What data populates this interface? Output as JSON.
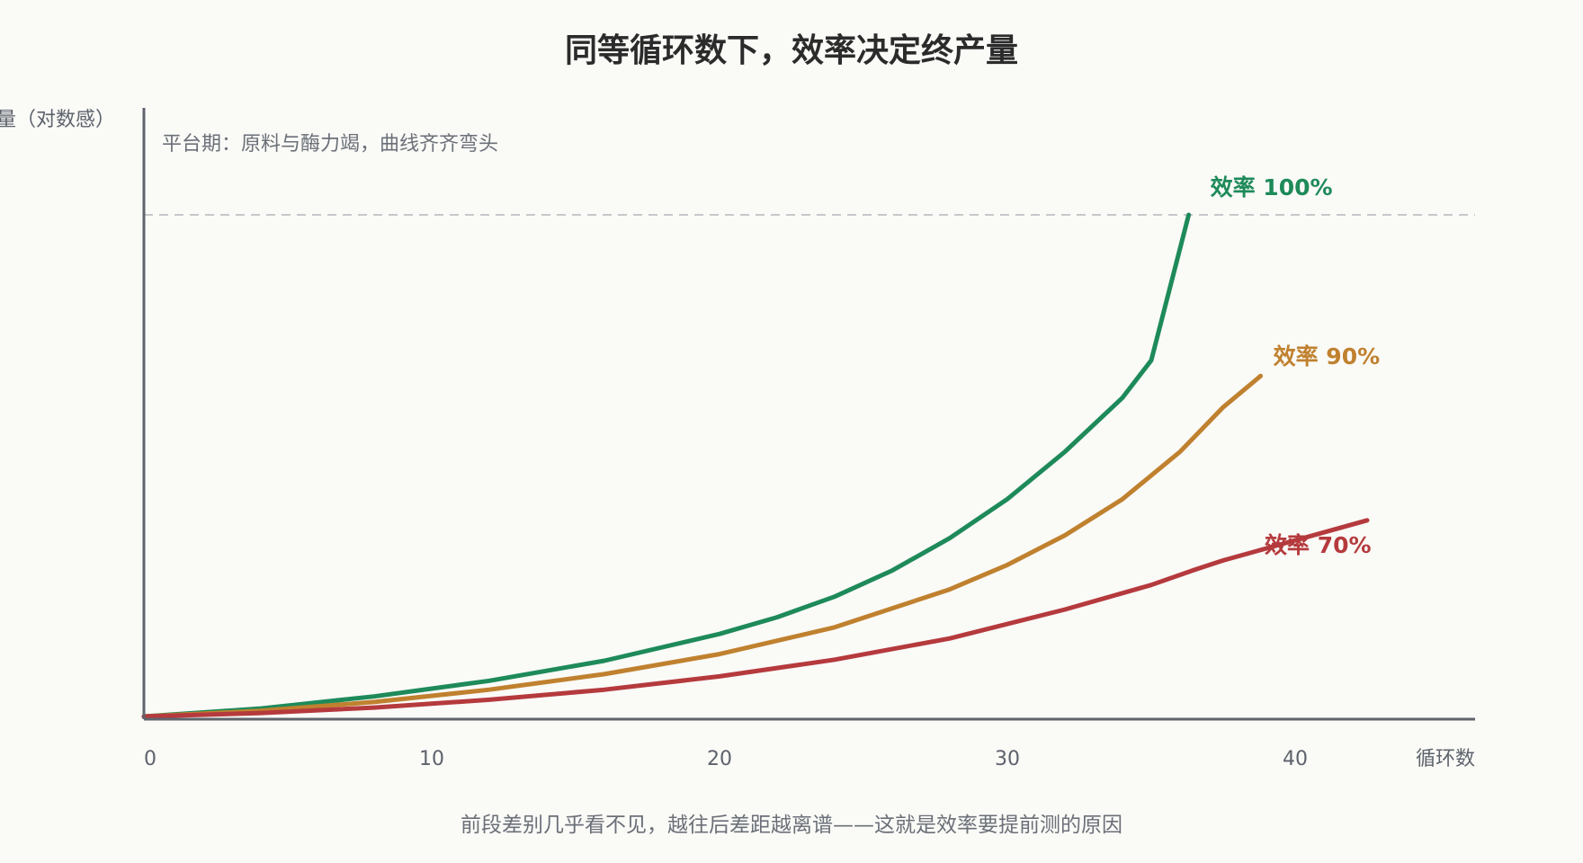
{
  "chart_data": {
    "type": "line",
    "title": "同等循环数下，效率决定终产量",
    "ylabel": "产量（对数感）",
    "xlabel": "循环数",
    "xticks": [
      0,
      10,
      20,
      30,
      40
    ],
    "xlim": [
      0,
      46
    ],
    "ylim": [
      0,
      1
    ],
    "grid": false,
    "legend": "inline-at-line-end",
    "plateau": {
      "y": 0.9,
      "label": "平台期：原料与酶力竭，曲线齐齐弯头"
    },
    "footnote": "前段差别几乎看不见，越往后差距越离谱——这就是效率要提前测的原因",
    "series": [
      {
        "name": "效率 100%",
        "color": "#1e8a5a",
        "x": [
          0,
          4,
          8,
          12,
          16,
          20,
          22,
          24,
          26,
          28,
          30,
          32,
          34,
          35,
          36.3
        ],
        "y": [
          0,
          0.014,
          0.036,
          0.064,
          0.1,
          0.148,
          0.178,
          0.215,
          0.262,
          0.32,
          0.39,
          0.475,
          0.572,
          0.639,
          0.9
        ]
      },
      {
        "name": "效率 90%",
        "color": "#c0812f",
        "x": [
          0,
          4,
          8,
          12,
          16,
          20,
          24,
          28,
          30,
          32,
          34,
          36,
          37.5,
          38.8
        ],
        "y": [
          0,
          0.01,
          0.026,
          0.048,
          0.076,
          0.112,
          0.16,
          0.228,
          0.272,
          0.325,
          0.39,
          0.475,
          0.555,
          0.611
        ]
      },
      {
        "name": "效率 70%",
        "color": "#b53a3d",
        "x": [
          0,
          4,
          8,
          12,
          16,
          20,
          24,
          28,
          32,
          35,
          36.5,
          37.5,
          42.5
        ],
        "y": [
          0,
          0.006,
          0.016,
          0.03,
          0.048,
          0.072,
          0.102,
          0.14,
          0.192,
          0.236,
          0.263,
          0.28,
          0.352
        ]
      }
    ]
  }
}
